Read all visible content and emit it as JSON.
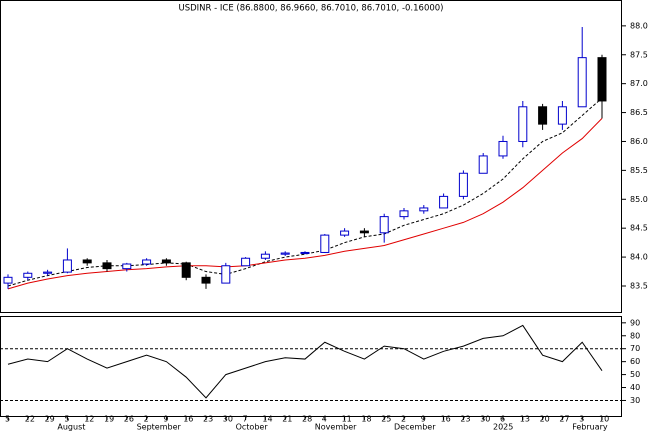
{
  "chart_data": [
    {
      "type": "candlestick",
      "title": "USDINR - ICE (86.8800, 86.9660, 86.7010, 86.7010, -0.16000)",
      "categories": [
        "5",
        "22",
        "29",
        "5",
        "12",
        "19",
        "26",
        "2",
        "9",
        "16",
        "23",
        "30",
        "7",
        "14",
        "21",
        "28",
        "4",
        "11",
        "18",
        "25",
        "2",
        "9",
        "16",
        "23",
        "30",
        "6",
        "13",
        "20",
        "27",
        "3",
        "10"
      ],
      "months": [
        null,
        null,
        null,
        "August",
        null,
        null,
        null,
        "September",
        null,
        null,
        null,
        null,
        "October",
        null,
        null,
        null,
        "November",
        null,
        null,
        null,
        "December",
        null,
        null,
        null,
        null,
        "2025",
        null,
        null,
        null,
        "February",
        null
      ],
      "open": [
        83.55,
        83.65,
        83.72,
        83.74,
        83.95,
        83.9,
        83.8,
        83.88,
        83.95,
        83.9,
        83.65,
        83.55,
        83.85,
        83.98,
        84.05,
        84.07,
        84.08,
        84.38,
        84.45,
        84.42,
        84.7,
        84.8,
        84.85,
        85.05,
        85.45,
        85.75,
        86.0,
        86.6,
        86.3,
        86.6,
        87.45
      ],
      "high": [
        83.7,
        83.75,
        83.78,
        84.15,
        83.98,
        83.95,
        83.9,
        83.98,
        83.98,
        83.92,
        83.7,
        83.9,
        84.0,
        84.1,
        84.1,
        84.1,
        84.4,
        84.5,
        84.5,
        84.75,
        84.85,
        84.9,
        85.1,
        85.5,
        85.8,
        86.1,
        86.7,
        86.65,
        86.7,
        87.98,
        87.5
      ],
      "low": [
        83.45,
        83.6,
        83.68,
        83.72,
        83.85,
        83.75,
        83.75,
        83.85,
        83.85,
        83.6,
        83.45,
        83.55,
        83.85,
        83.95,
        84.02,
        84.05,
        84.07,
        84.35,
        84.35,
        84.25,
        84.65,
        84.75,
        84.85,
        85.0,
        85.45,
        85.7,
        85.9,
        86.2,
        86.2,
        86.6,
        86.4
      ],
      "close": [
        83.65,
        83.72,
        83.74,
        83.95,
        83.9,
        83.8,
        83.88,
        83.95,
        83.9,
        83.65,
        83.55,
        83.85,
        83.98,
        84.05,
        84.07,
        84.08,
        84.38,
        84.45,
        84.42,
        84.7,
        84.8,
        84.85,
        85.05,
        85.45,
        85.75,
        86.0,
        86.6,
        86.3,
        86.6,
        87.45,
        86.701
      ],
      "up_color": "#0000cc",
      "down_color": "#000000",
      "overlays": [
        {
          "color": "#000000",
          "dashed": true,
          "values": [
            83.5,
            83.6,
            83.68,
            83.75,
            83.82,
            83.85,
            83.85,
            83.87,
            83.9,
            83.88,
            83.75,
            83.7,
            83.8,
            83.92,
            84.0,
            84.05,
            84.12,
            84.25,
            84.35,
            84.4,
            84.55,
            84.65,
            84.75,
            84.9,
            85.1,
            85.35,
            85.7,
            86.0,
            86.15,
            86.45,
            86.75
          ]
        },
        {
          "color": "#e00000",
          "dashed": false,
          "values": [
            83.45,
            83.55,
            83.62,
            83.68,
            83.72,
            83.75,
            83.78,
            83.8,
            83.83,
            83.85,
            83.85,
            83.83,
            83.85,
            83.9,
            83.95,
            83.98,
            84.03,
            84.1,
            84.15,
            84.2,
            84.3,
            84.4,
            84.5,
            84.6,
            84.75,
            84.95,
            85.2,
            85.5,
            85.8,
            86.05,
            86.4
          ]
        }
      ],
      "ylim": [
        83.05,
        88.43
      ],
      "yticks": [
        {
          "value": 83.5,
          "label": "83.5"
        },
        {
          "value": 84,
          "label": "84.0"
        },
        {
          "value": 84.5,
          "label": "84.5"
        },
        {
          "value": 85,
          "label": "85.0"
        },
        {
          "value": 85.5,
          "label": "85.5"
        },
        {
          "value": 86,
          "label": "86.0"
        },
        {
          "value": 86.5,
          "label": "86.5"
        },
        {
          "value": 87,
          "label": "87.0"
        },
        {
          "value": 87.5,
          "label": "87.5"
        },
        {
          "value": 88,
          "label": "88.0"
        }
      ]
    },
    {
      "type": "line",
      "values": [
        58,
        62,
        60,
        70,
        62,
        55,
        60,
        65,
        60,
        48,
        32,
        50,
        55,
        60,
        63,
        62,
        75,
        68,
        62,
        72,
        70,
        62,
        68,
        72,
        78,
        80,
        88,
        65,
        60,
        75,
        53
      ],
      "color": "#000000",
      "hlines": [
        70,
        30
      ],
      "ylim": [
        18,
        94.5
      ],
      "yticks": [
        30,
        40,
        50,
        60,
        70,
        80,
        90
      ]
    }
  ]
}
